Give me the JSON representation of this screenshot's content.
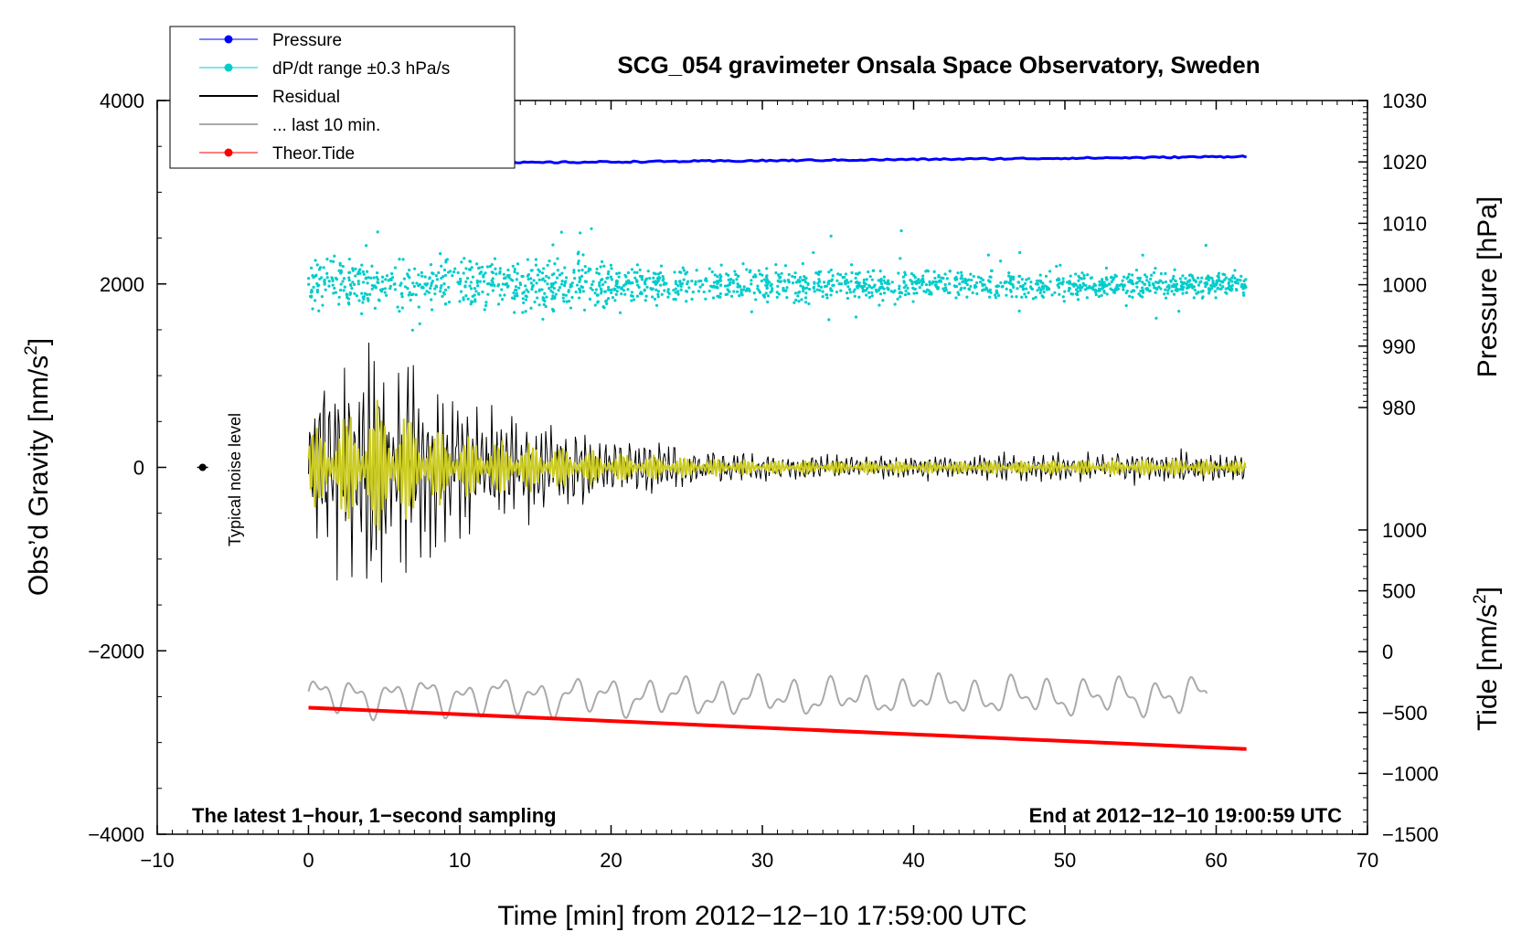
{
  "chart_data": {
    "type": "line",
    "title": "SCG_054 gravimeter Onsala Space Observatory, Sweden",
    "xlabel": "Time [min] from 2012−12−10 17:59:00 UTC",
    "ylabel_left": "Obs’d Gravity [nm/s²]",
    "ylabel_left_main": "Obs’d Gravity [nm/s",
    "ylabel_left_sup": "2",
    "ylabel_left_close": "]",
    "ylabel_right_pressure": "Pressure [hPa]",
    "ylabel_right_tide_main": "Tide [nm/s",
    "ylabel_right_tide_sup": "2",
    "ylabel_right_tide_close": "]",
    "xlim": [
      -10,
      70
    ],
    "ylim_left": [
      -4000,
      4000
    ],
    "x_ticks": [
      "−10",
      "0",
      "10",
      "20",
      "30",
      "40",
      "50",
      "60",
      "70"
    ],
    "x_tick_values": [
      -10,
      0,
      10,
      20,
      30,
      40,
      50,
      60,
      70
    ],
    "y_left_ticks": [
      "−4000",
      "−2000",
      "0",
      "2000",
      "4000"
    ],
    "y_left_tick_values": [
      -4000,
      -2000,
      0,
      2000,
      4000
    ],
    "pressure_axis": {
      "ticks": [
        "980",
        "990",
        "1000",
        "1010",
        "1020",
        "1030"
      ],
      "tick_values": [
        980,
        990,
        1000,
        1010,
        1020,
        1030
      ],
      "range": [
        980,
        1030
      ]
    },
    "tide_axis": {
      "ticks": [
        "−1500",
        "−1000",
        "−500",
        "0",
        "500",
        "1000"
      ],
      "tick_values": [
        -1500,
        -1000,
        -500,
        0,
        500,
        1000
      ],
      "range": [
        -1500,
        1000
      ]
    },
    "annotations": {
      "bottom_left": "The latest 1−hour, 1−second sampling",
      "bottom_right": "End at 2012−12−10 19:00:59 UTC",
      "noise_label": "Typical noise level"
    },
    "legend_position": "top-left",
    "legend": [
      {
        "label": "Pressure",
        "color": "#0000ff",
        "marker": true
      },
      {
        "label": "dP/dt range ±0.3 hPa/s",
        "color": "#00cccc",
        "marker": true
      },
      {
        "label": "Residual",
        "color": "#000000",
        "marker": false
      },
      {
        "label": "... last 10 min.",
        "color": "#aaaaaa",
        "marker": false
      },
      {
        "label": "Theor.Tide",
        "color": "#ff0000",
        "marker": true
      }
    ],
    "series": [
      {
        "name": "Pressure",
        "axis": "pressure",
        "color": "#0000ff",
        "x": [
          0,
          5,
          10,
          15,
          20,
          25,
          30,
          35,
          40,
          45,
          50,
          55,
          62
        ],
        "y": [
          1019.7,
          1019.8,
          1019.8,
          1019.9,
          1020.0,
          1020.1,
          1020.2,
          1020.3,
          1020.4,
          1020.5,
          1020.6,
          1020.7,
          1020.9
        ]
      },
      {
        "name": "dP/dt range ±0.3 hPa/s",
        "axis": "pressure",
        "color": "#00cccc",
        "center": 1000,
        "x_start": 0,
        "x_end": 62,
        "note": "scatter around 1000 hPa, larger spread in first 20 min"
      },
      {
        "name": "Residual",
        "axis": "gravity",
        "color": "#000000",
        "envelope_x": [
          0,
          2,
          5,
          8,
          10,
          15,
          20,
          25,
          30,
          40,
          50,
          58,
          62
        ],
        "envelope_amp": [
          900,
          1300,
          1700,
          1000,
          800,
          600,
          380,
          260,
          180,
          150,
          170,
          220,
          150
        ]
      },
      {
        "name": "... last 10 min.",
        "axis": "gravity",
        "color": "#aaaaaa",
        "x_start": 0,
        "x_end": 59.5,
        "center": -2500,
        "amp": 200
      },
      {
        "name": "Theor.Tide",
        "axis": "tide",
        "color": "#ff0000",
        "x": [
          0,
          62
        ],
        "y": [
          -460,
          -800
        ]
      }
    ],
    "noise_marker": {
      "x": -7,
      "y": 0
    }
  }
}
